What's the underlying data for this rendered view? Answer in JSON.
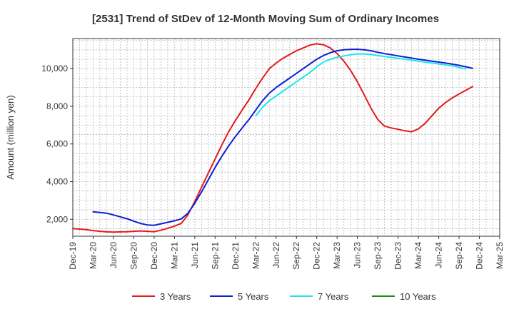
{
  "chart_data": {
    "type": "line",
    "title": "[2531]  Trend of StDev of 12-Month Moving Sum of Ordinary Incomes",
    "xlabel": "",
    "ylabel": "Amount (million yen)",
    "ylim": [
      1100,
      11600
    ],
    "yticks": [
      2000,
      4000,
      6000,
      8000,
      10000
    ],
    "ytick_labels": [
      "2,000",
      "4,000",
      "6,000",
      "8,000",
      "10,000"
    ],
    "x_ticks": [
      "Dec-19",
      "Mar-20",
      "Jun-20",
      "Sep-20",
      "Dec-20",
      "Mar-21",
      "Jun-21",
      "Sep-21",
      "Dec-21",
      "Mar-22",
      "Jun-22",
      "Sep-22",
      "Dec-22",
      "Mar-23",
      "Jun-23",
      "Sep-23",
      "Dec-23",
      "Mar-24",
      "Jun-24",
      "Sep-24",
      "Dec-24",
      "Mar-25"
    ],
    "grid": true,
    "legend_position": "bottom",
    "series": [
      {
        "name": "3 Years",
        "color": "#e31a1c",
        "start_index": 0,
        "values": [
          1500,
          1480,
          1450,
          1400,
          1360,
          1330,
          1320,
          1330,
          1340,
          1360,
          1380,
          1360,
          1340,
          1420,
          1520,
          1640,
          1780,
          2250,
          2950,
          3700,
          4450,
          5200,
          5950,
          6650,
          7250,
          7800,
          8350,
          8950,
          9500,
          10000,
          10300,
          10550,
          10750,
          10950,
          11100,
          11250,
          11320,
          11270,
          11100,
          10800,
          10400,
          9900,
          9300,
          8600,
          7900,
          7300,
          6950,
          6850,
          6780,
          6700,
          6650,
          6800,
          7100,
          7500,
          7900,
          8200,
          8450,
          8650,
          8850,
          9050
        ]
      },
      {
        "name": "5 Years",
        "color": "#0a1fd6",
        "start_index": 3,
        "values": [
          2400,
          2360,
          2320,
          2230,
          2130,
          2030,
          1900,
          1780,
          1700,
          1680,
          1760,
          1840,
          1920,
          2020,
          2330,
          2850,
          3450,
          4100,
          4750,
          5350,
          5900,
          6400,
          6850,
          7300,
          7800,
          8300,
          8700,
          9000,
          9250,
          9500,
          9750,
          10000,
          10250,
          10500,
          10700,
          10850,
          10950,
          11000,
          11020,
          11030,
          11000,
          10950,
          10870,
          10800,
          10740,
          10680,
          10620,
          10560,
          10500,
          10450,
          10400,
          10350,
          10300,
          10240,
          10180,
          10100,
          10020
        ]
      },
      {
        "name": "7 Years",
        "color": "#1ee6e6",
        "start_index": 27,
        "values": [
          7500,
          7950,
          8300,
          8550,
          8800,
          9050,
          9300,
          9550,
          9800,
          10100,
          10350,
          10500,
          10600,
          10680,
          10740,
          10780,
          10780,
          10750,
          10700,
          10650,
          10600,
          10550,
          10500,
          10450,
          10400,
          10350,
          10300,
          10250,
          10200,
          10150,
          10070,
          9980
        ]
      },
      {
        "name": "10 Years",
        "color": "#1a8a1a",
        "start_index": 0,
        "values": []
      }
    ]
  }
}
